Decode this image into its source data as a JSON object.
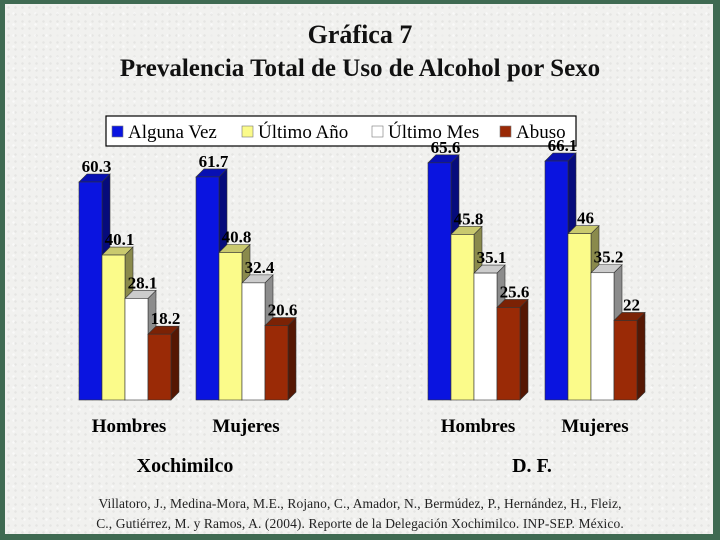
{
  "title_line1": "Gráfica 7",
  "title_line2": "Prevalencia Total de Uso de Alcohol por Sexo",
  "citation_line1": "Villatoro, J., Medina-Mora, M.E., Rojano, C., Amador, N., Bermúdez, P., Hernández, H., Fleiz,",
  "citation_line2": "C., Gutiérrez, M. y Ramos, A. (2004). Reporte de la Delegación Xochimilco. INP-SEP. México.",
  "chart_data": {
    "type": "bar",
    "title": "Prevalencia Total de Uso de Alcohol por Sexo",
    "legend_position": "top",
    "grid": false,
    "ylim": [
      0,
      70
    ],
    "series": [
      {
        "name": "Alguna Vez",
        "color": "#0a14e0"
      },
      {
        "name": "Último Año",
        "color": "#fbfb8a"
      },
      {
        "name": "Último Mes",
        "color": "#ffffff"
      },
      {
        "name": "Abuso",
        "color": "#9a2a06"
      }
    ],
    "groups": [
      {
        "name": "Xochimilco",
        "categories": [
          {
            "label": "Hombres",
            "values": [
              60.3,
              40.1,
              28.1,
              18.2
            ]
          },
          {
            "label": "Mujeres",
            "values": [
              61.7,
              40.8,
              32.4,
              20.6
            ]
          }
        ]
      },
      {
        "name": "D. F.",
        "categories": [
          {
            "label": "Hombres",
            "values": [
              65.6,
              45.8,
              35.1,
              25.6
            ]
          },
          {
            "label": "Mujeres",
            "values": [
              66.1,
              46,
              35.2,
              22
            ]
          }
        ]
      }
    ]
  }
}
